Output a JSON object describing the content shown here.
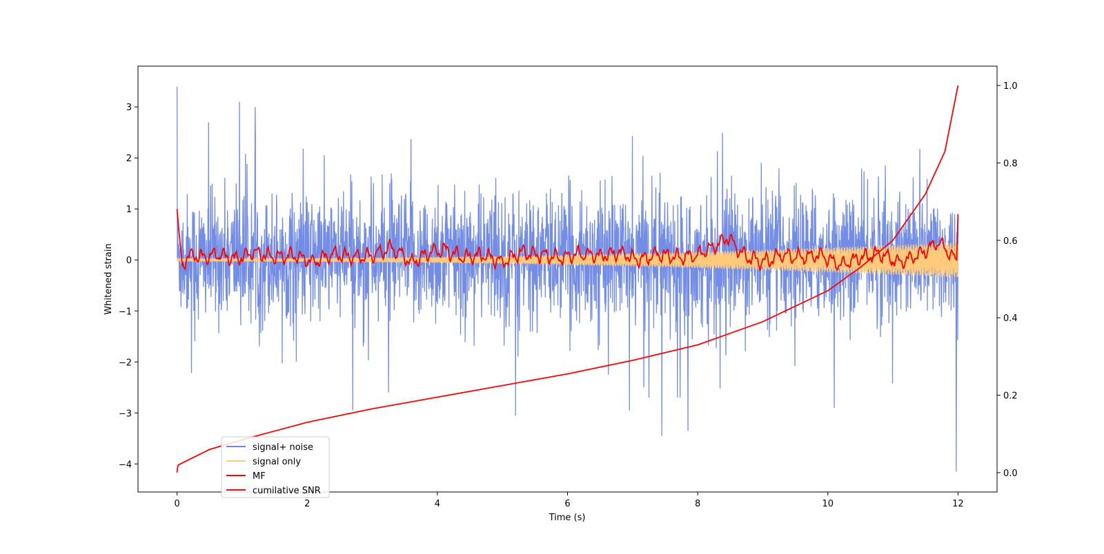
{
  "chart_data": {
    "type": "line",
    "title": "",
    "xlabel": "Time (s)",
    "ylabel": "Whitened strain",
    "y2label": "",
    "xlim": [
      -0.6,
      12.6
    ],
    "ylim": [
      -4.55,
      3.8
    ],
    "y2lim": [
      -0.05,
      1.05
    ],
    "x_ticks": [
      0,
      2,
      4,
      6,
      8,
      10,
      12
    ],
    "x_tick_labels": [
      "0",
      "2",
      "4",
      "6",
      "8",
      "10",
      "12"
    ],
    "y_ticks": [
      -4,
      -3,
      -2,
      -1,
      0,
      1,
      2,
      3
    ],
    "y_tick_labels": [
      "−4",
      "−3",
      "−2",
      "−1",
      "0",
      "1",
      "2",
      "3"
    ],
    "y2_ticks": [
      0.0,
      0.2,
      0.4,
      0.6,
      0.8,
      1.0
    ],
    "y2_tick_labels": [
      "0.0",
      "0.2",
      "0.4",
      "0.6",
      "0.8",
      "1.0"
    ],
    "grid": false,
    "legend_position": "lower-left",
    "series": [
      {
        "name": "signal+ noise",
        "axis": "left",
        "color": "#6b87e6",
        "description_values": {
          "x_range": [
            0,
            12
          ],
          "spread_1sigma": 0.85,
          "peak_max": 3.4,
          "peak_min": -4.15,
          "notable_peaks": [
            [
              0.0,
              3.4
            ],
            [
              0.96,
              3.1
            ],
            [
              1.2,
              3.0
            ],
            [
              7.45,
              -3.45
            ],
            [
              7.85,
              -3.35
            ],
            [
              11.97,
              -4.15
            ],
            [
              5.2,
              -3.05
            ],
            [
              2.7,
              -2.95
            ],
            [
              6.95,
              -2.95
            ],
            [
              10.1,
              -2.9
            ]
          ]
        }
      },
      {
        "name": "signal only",
        "axis": "left",
        "color": "#ffcb7a",
        "description_values": {
          "x_range": [
            0,
            12
          ],
          "amplitude_start": 0.03,
          "amplitude_end": 0.35
        }
      },
      {
        "name": "MF",
        "axis": "left",
        "color": "#ff0000",
        "x": [
          0.0,
          0.03,
          0.08,
          0.15,
          0.25,
          0.4,
          0.6,
          0.9,
          1.2,
          1.5,
          1.8,
          2.1,
          2.4,
          2.7,
          3.0,
          3.3,
          3.6,
          3.9,
          4.1,
          4.4,
          4.7,
          5.0,
          5.3,
          5.6,
          5.9,
          6.2,
          6.5,
          6.8,
          7.1,
          7.4,
          7.7,
          8.0,
          8.3,
          8.45,
          8.7,
          9.0,
          9.3,
          9.6,
          9.9,
          10.2,
          10.5,
          10.8,
          11.1,
          11.4,
          11.7,
          11.9,
          11.98,
          12.0
        ],
        "y": [
          1.0,
          0.55,
          -0.1,
          0.05,
          0.1,
          0.05,
          0.12,
          0.02,
          0.15,
          0.05,
          0.1,
          -0.05,
          0.12,
          0.05,
          0.08,
          0.25,
          -0.05,
          0.15,
          0.2,
          0.05,
          0.1,
          -0.05,
          0.15,
          0.1,
          0.05,
          0.12,
          0.08,
          0.15,
          0.0,
          0.12,
          0.05,
          0.1,
          0.3,
          0.45,
          0.1,
          -0.05,
          0.1,
          0.05,
          0.1,
          -0.1,
          0.05,
          0.12,
          -0.05,
          0.1,
          0.35,
          0.1,
          0.0,
          0.9
        ]
      },
      {
        "name": "cumilative SNR",
        "axis": "right",
        "color": "#ff0000",
        "x": [
          0.0,
          0.01,
          0.02,
          0.5,
          1.0,
          2.0,
          3.0,
          4.0,
          5.0,
          6.0,
          7.0,
          8.0,
          8.5,
          9.0,
          9.5,
          10.0,
          10.5,
          11.0,
          11.5,
          11.8,
          12.0
        ],
        "y": [
          0.0,
          0.015,
          0.02,
          0.06,
          0.085,
          0.13,
          0.165,
          0.195,
          0.225,
          0.255,
          0.29,
          0.33,
          0.36,
          0.39,
          0.43,
          0.47,
          0.53,
          0.6,
          0.72,
          0.83,
          1.0
        ]
      }
    ]
  }
}
